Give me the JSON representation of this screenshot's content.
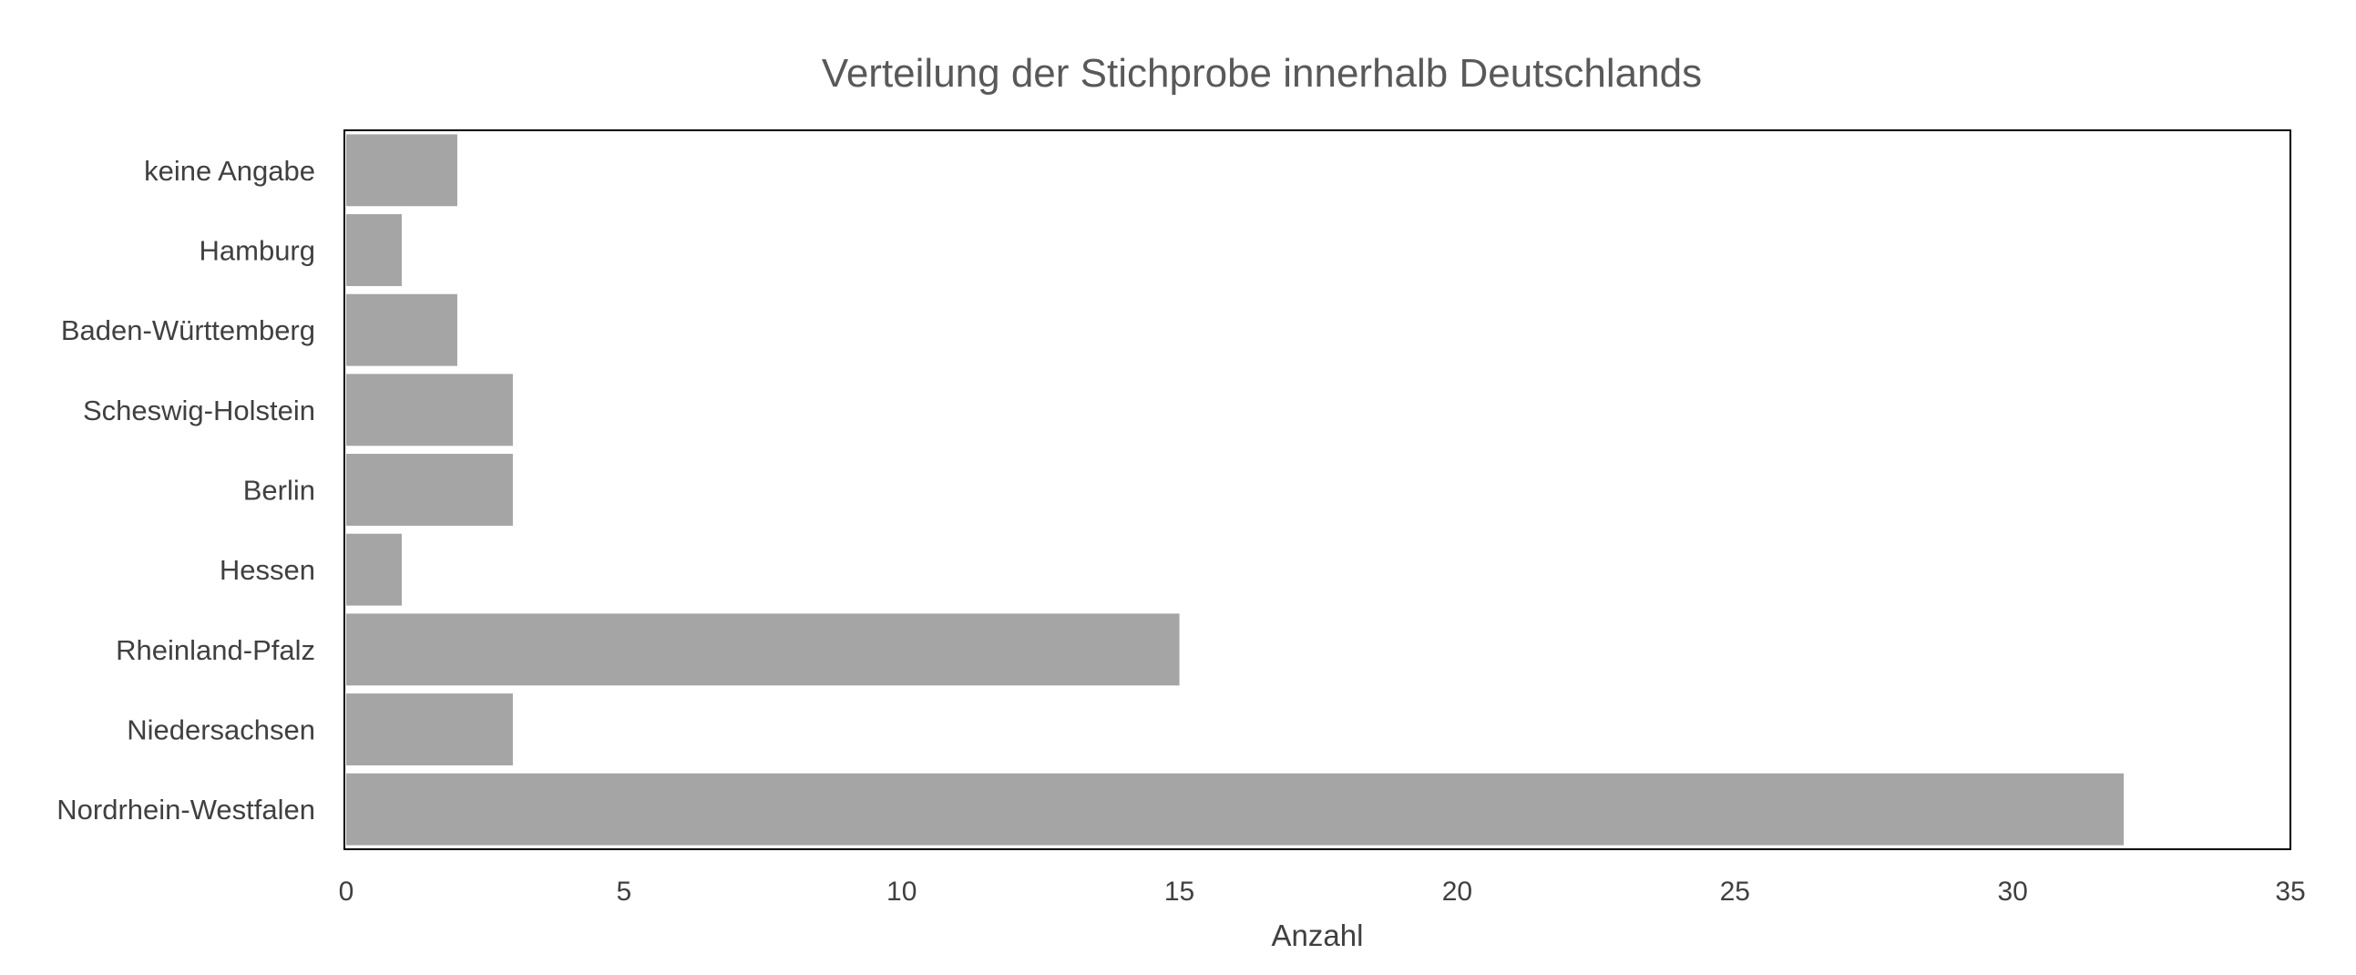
{
  "chart_data": {
    "type": "bar",
    "orientation": "horizontal",
    "title": "Verteilung der Stichprobe innerhalb Deutschlands",
    "xlabel": "Anzahl",
    "ylabel": "",
    "categories": [
      "keine Angabe",
      "Hamburg",
      "Baden-Württemberg",
      "Scheswig-Holstein",
      "Berlin",
      "Hessen",
      "Rheinland-Pfalz",
      "Niedersachsen",
      "Nordrhein-Westfalen"
    ],
    "values": [
      2,
      1,
      2,
      3,
      3,
      1,
      15,
      3,
      32
    ],
    "xlim": [
      0,
      35
    ],
    "xticks": [
      0,
      5,
      10,
      15,
      20,
      25,
      30,
      35
    ],
    "grid": false,
    "legend": "none",
    "bar_color": "#a5a5a5",
    "frame_color": "#000000"
  }
}
